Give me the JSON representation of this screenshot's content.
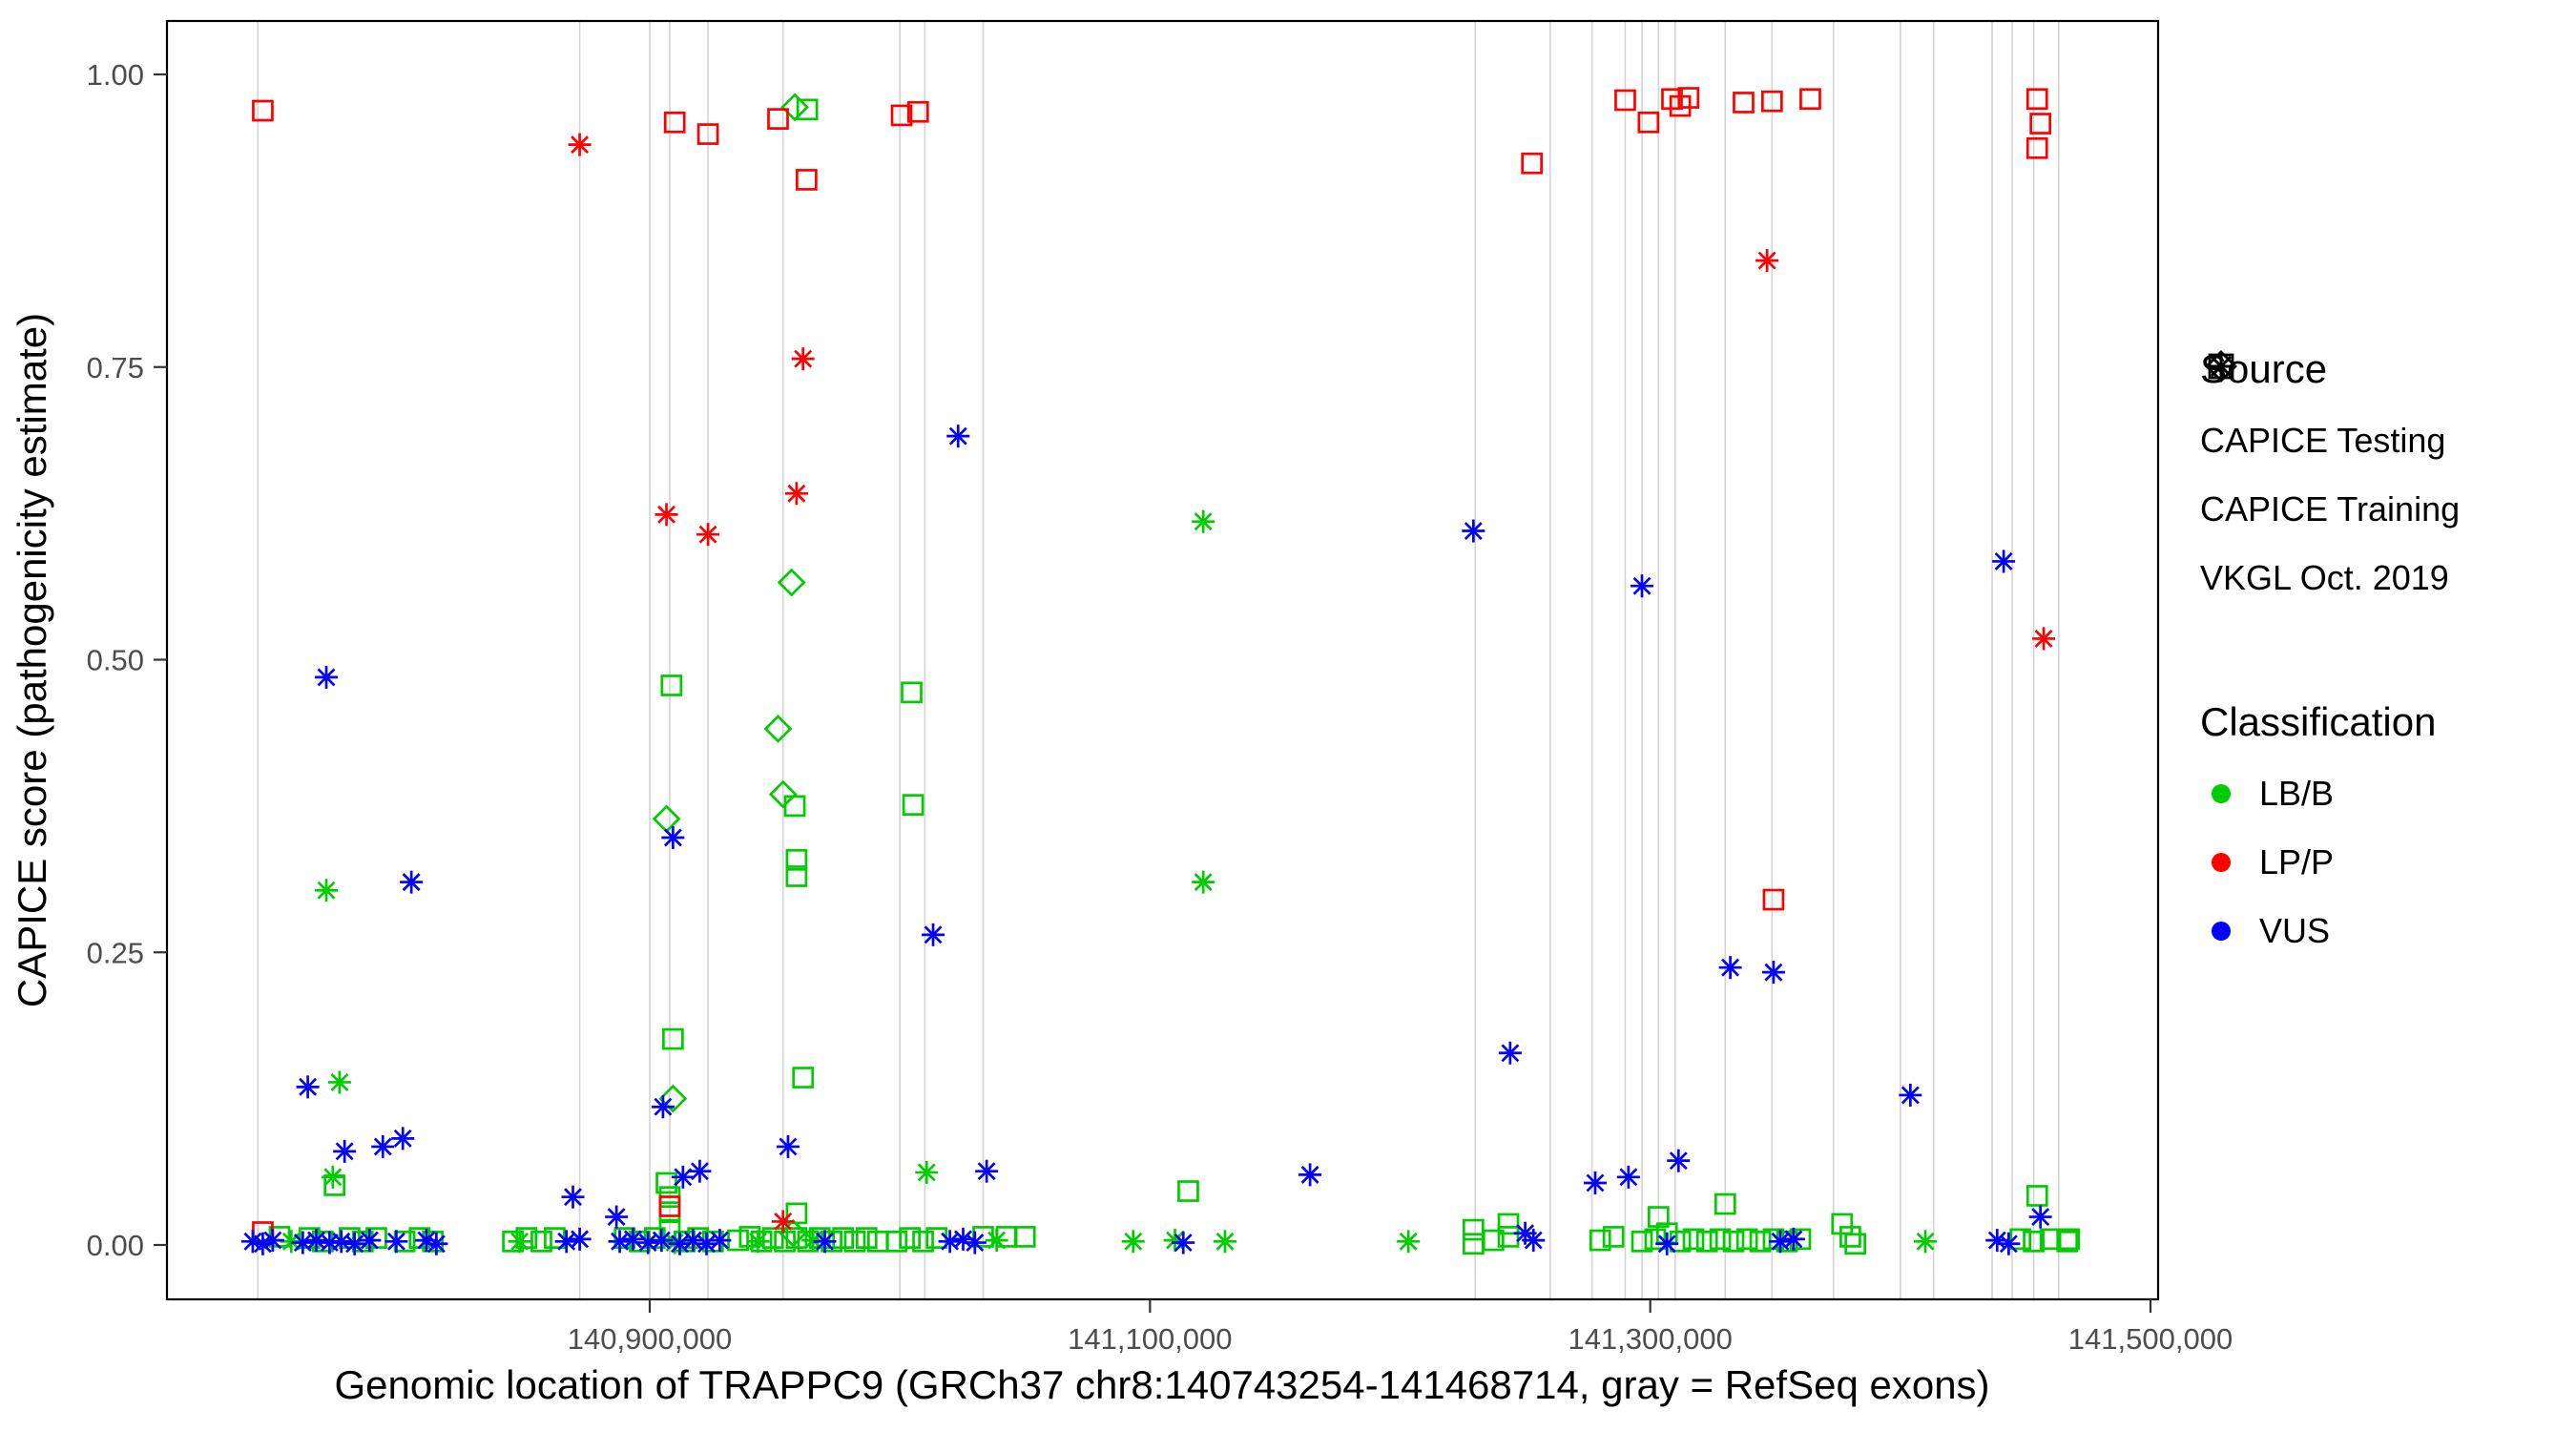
{
  "chart_data": {
    "type": "scatter",
    "title": "",
    "xlabel": "Genomic location of TRAPPC9 (GRCh37 chr8:140743254-141468714, gray = RefSeq exons)",
    "ylabel": "CAPICE score (pathogenicity estimate)",
    "xlim": [
      140707000,
      141503000
    ],
    "ylim": [
      -0.033,
      1.047
    ],
    "grid": false,
    "legend_position": "right",
    "x_ticks": [
      {
        "value": 140900000,
        "label": "140,900,000"
      },
      {
        "value": 141100000,
        "label": "141,100,000"
      },
      {
        "value": 141300000,
        "label": "141,300,000"
      },
      {
        "value": 141500000,
        "label": "141,500,000"
      }
    ],
    "y_ticks": [
      {
        "value": 0,
        "label": "0.00"
      },
      {
        "value": 0.25,
        "label": "0.25"
      },
      {
        "value": 0.5,
        "label": "0.50"
      },
      {
        "value": 0.75,
        "label": "0.75"
      },
      {
        "value": 1,
        "label": "1.00"
      }
    ],
    "colors": {
      "LB/B": "#00CC00",
      "LP/P": "#FF0000",
      "VUS": "#0000FF",
      "exon": "#D3D3D3",
      "panel_border": "#000000",
      "tick_label": "#4d4d4d"
    },
    "exon_lines": [
      140743300,
      140872000,
      140900000,
      140908000,
      140923300,
      140953300,
      141000000,
      141010000,
      141033300,
      141230000,
      141260000,
      141276700,
      141290000,
      141296700,
      141303300,
      141310000,
      141330000,
      141348700,
      141373300,
      141400000,
      141413300,
      141436700,
      141444700,
      141453300,
      141463300
    ],
    "series": [
      {
        "source": "CAPICE Testing",
        "classification": "LB/B",
        "shape": "diamond",
        "points": [
          [
            140958000,
            0.972
          ],
          [
            140956700,
            0.566
          ],
          [
            140951300,
            0.441
          ],
          [
            140906700,
            0.364
          ],
          [
            140953300,
            0.385
          ],
          [
            140909300,
            0.125
          ],
          [
            140957300,
            0.01
          ]
        ]
      },
      {
        "source": "CAPICE Training",
        "classification": "LB/B",
        "shape": "square",
        "points": [
          [
            140963000,
            0.97
          ],
          [
            140908700,
            0.478
          ],
          [
            141004700,
            0.472
          ],
          [
            141005300,
            0.376
          ],
          [
            140958000,
            0.375
          ],
          [
            140958700,
            0.329
          ],
          [
            140958700,
            0.315
          ],
          [
            140909300,
            0.176
          ],
          [
            140961300,
            0.143
          ],
          [
            141115300,
            0.046
          ],
          [
            140906700,
            0.053
          ],
          [
            140908000,
            0.041
          ],
          [
            140908000,
            0.028
          ],
          [
            141303300,
            0.024
          ],
          [
            141330000,
            0.035
          ],
          [
            141454700,
            0.042
          ],
          [
            140958700,
            0.027
          ],
          [
            140774000,
            0.051
          ],
          [
            141243300,
            0.018
          ],
          [
            141376700,
            0.018
          ],
          [
            140752000,
            0.007
          ],
          [
            140764000,
            0.006
          ],
          [
            140769300,
            0.003
          ],
          [
            140780000,
            0.006
          ],
          [
            140785300,
            0.003
          ],
          [
            140790700,
            0.006
          ],
          [
            140802000,
            0.003
          ],
          [
            140808000,
            0.006
          ],
          [
            140813300,
            0.003
          ],
          [
            140845300,
            0.003
          ],
          [
            140850700,
            0.006
          ],
          [
            140856700,
            0.003
          ],
          [
            140862000,
            0.006
          ],
          [
            140890000,
            0.006
          ],
          [
            140896000,
            0.003
          ],
          [
            140902000,
            0.006
          ],
          [
            140908000,
            0.013
          ],
          [
            140914000,
            0.003
          ],
          [
            140919300,
            0.006
          ],
          [
            140925300,
            0.003
          ],
          [
            140935300,
            0.004
          ],
          [
            140940000,
            0.007
          ],
          [
            140944700,
            0.003
          ],
          [
            140949300,
            0.006
          ],
          [
            140954000,
            0.003
          ],
          [
            140958700,
            0.006
          ],
          [
            140963300,
            0.003
          ],
          [
            140968000,
            0.006
          ],
          [
            140972700,
            0.003
          ],
          [
            140977300,
            0.006
          ],
          [
            140982000,
            0.003
          ],
          [
            140986700,
            0.006
          ],
          [
            140991300,
            0.003
          ],
          [
            140998700,
            0.003
          ],
          [
            141004000,
            0.006
          ],
          [
            141009300,
            0.003
          ],
          [
            141014700,
            0.006
          ],
          [
            141033300,
            0.007
          ],
          [
            141042700,
            0.007
          ],
          [
            141050000,
            0.007
          ],
          [
            141229300,
            0.013
          ],
          [
            141229300,
            0.001
          ],
          [
            141237300,
            0.004
          ],
          [
            141243300,
            0.007
          ],
          [
            141280000,
            0.004
          ],
          [
            141285300,
            0.007
          ],
          [
            141296700,
            0.003
          ],
          [
            141302000,
            0.005
          ],
          [
            141306700,
            0.01
          ],
          [
            141312000,
            0.003
          ],
          [
            141317300,
            0.005
          ],
          [
            141322700,
            0.003
          ],
          [
            141328000,
            0.005
          ],
          [
            141333300,
            0.003
          ],
          [
            141338700,
            0.005
          ],
          [
            141344000,
            0.003
          ],
          [
            141349300,
            0.005
          ],
          [
            141354700,
            0.003
          ],
          [
            141360000,
            0.005
          ],
          [
            141380000,
            0.007
          ],
          [
            141382000,
            0.001
          ],
          [
            141448000,
            0.005
          ],
          [
            141453300,
            0.003
          ],
          [
            141460000,
            0.005
          ],
          [
            141466700,
            0.003
          ],
          [
            141467500,
            0.005
          ]
        ]
      },
      {
        "source": "CAPICE Training",
        "classification": "LP/P",
        "shape": "square",
        "points": [
          [
            140745300,
            0.969
          ],
          [
            140910000,
            0.959
          ],
          [
            140923300,
            0.949
          ],
          [
            140951300,
            0.962
          ],
          [
            140962700,
            0.91
          ],
          [
            141000700,
            0.965
          ],
          [
            141007300,
            0.968
          ],
          [
            141252700,
            0.924
          ],
          [
            141290000,
            0.978
          ],
          [
            141299300,
            0.959
          ],
          [
            141308700,
            0.979
          ],
          [
            141312000,
            0.973
          ],
          [
            141315300,
            0.98
          ],
          [
            141337300,
            0.976
          ],
          [
            141348700,
            0.977
          ],
          [
            141364000,
            0.979
          ],
          [
            141454700,
            0.979
          ],
          [
            141456000,
            0.958
          ],
          [
            141454700,
            0.937
          ],
          [
            141349300,
            0.295
          ],
          [
            140745300,
            0.011
          ],
          [
            140908000,
            0.033
          ]
        ]
      },
      {
        "source": "VKGL Oct. 2019",
        "classification": "LB/B",
        "shape": "asterisk",
        "points": [
          [
            141121300,
            0.618
          ],
          [
            141121300,
            0.31
          ],
          [
            140770700,
            0.303
          ],
          [
            140776000,
            0.139
          ],
          [
            140773300,
            0.058
          ],
          [
            141010700,
            0.062
          ],
          [
            140965300,
            0.004
          ],
          [
            140756700,
            0.003
          ],
          [
            140848000,
            0.003
          ],
          [
            140910000,
            0.002
          ],
          [
            140943300,
            0.003
          ],
          [
            141038700,
            0.004
          ],
          [
            141093300,
            0.003
          ],
          [
            141110000,
            0.004
          ],
          [
            141130000,
            0.003
          ],
          [
            141203300,
            0.003
          ],
          [
            141410000,
            0.003
          ]
        ]
      },
      {
        "source": "VKGL Oct. 2019",
        "classification": "LP/P",
        "shape": "asterisk",
        "points": [
          [
            140872000,
            0.94
          ],
          [
            140961300,
            0.757
          ],
          [
            140958700,
            0.642
          ],
          [
            140906700,
            0.624
          ],
          [
            140923300,
            0.607
          ],
          [
            141346700,
            0.841
          ],
          [
            141457300,
            0.518
          ],
          [
            140953300,
            0.02
          ]
        ]
      },
      {
        "source": "VKGL Oct. 2019",
        "classification": "VUS",
        "shape": "asterisk",
        "points": [
          [
            141023300,
            0.691
          ],
          [
            141229300,
            0.61
          ],
          [
            141296700,
            0.563
          ],
          [
            141441300,
            0.584
          ],
          [
            140770700,
            0.485
          ],
          [
            140909300,
            0.348
          ],
          [
            140804700,
            0.31
          ],
          [
            141013300,
            0.265
          ],
          [
            141332000,
            0.237
          ],
          [
            141349300,
            0.233
          ],
          [
            141244000,
            0.164
          ],
          [
            141404000,
            0.128
          ],
          [
            140763300,
            0.135
          ],
          [
            140905300,
            0.118
          ],
          [
            140955300,
            0.084
          ],
          [
            140778000,
            0.08
          ],
          [
            140793300,
            0.084
          ],
          [
            140801300,
            0.091
          ],
          [
            141278000,
            0.053
          ],
          [
            141291300,
            0.058
          ],
          [
            141311300,
            0.072
          ],
          [
            141164000,
            0.06
          ],
          [
            141034700,
            0.063
          ],
          [
            140913300,
            0.058
          ],
          [
            140920000,
            0.063
          ],
          [
            140869300,
            0.041
          ],
          [
            140886700,
            0.024
          ],
          [
            141456000,
            0.024
          ],
          [
            140741300,
            0.003
          ],
          [
            140745300,
            0.001
          ],
          [
            140749300,
            0.004
          ],
          [
            140761300,
            0.002
          ],
          [
            140766700,
            0.004
          ],
          [
            140772000,
            0.002
          ],
          [
            140776700,
            0.003
          ],
          [
            140782000,
            0.001
          ],
          [
            140788000,
            0.004
          ],
          [
            140798700,
            0.003
          ],
          [
            140810700,
            0.004
          ],
          [
            140814700,
            0.001
          ],
          [
            140866700,
            0.003
          ],
          [
            140872000,
            0.005
          ],
          [
            140888000,
            0.003
          ],
          [
            140893300,
            0.005
          ],
          [
            140899300,
            0.002
          ],
          [
            140904700,
            0.004
          ],
          [
            140912000,
            0.001
          ],
          [
            140917300,
            0.004
          ],
          [
            140922700,
            0.001
          ],
          [
            140928000,
            0.004
          ],
          [
            140970000,
            0.003
          ],
          [
            141020000,
            0.003
          ],
          [
            141025300,
            0.005
          ],
          [
            141030000,
            0.002
          ],
          [
            141113300,
            0.002
          ],
          [
            141250000,
            0.01
          ],
          [
            141253300,
            0.004
          ],
          [
            141306700,
            0.001
          ],
          [
            141352000,
            0.003
          ],
          [
            141357300,
            0.005
          ],
          [
            141438700,
            0.004
          ],
          [
            141443300,
            0.001
          ]
        ]
      }
    ]
  },
  "legend": {
    "source_title": "Source",
    "source_items": [
      {
        "label": "CAPICE Testing",
        "shape": "diamond"
      },
      {
        "label": "CAPICE Training",
        "shape": "square"
      },
      {
        "label": "VKGL Oct. 2019",
        "shape": "asterisk"
      }
    ],
    "classification_title": "Classification",
    "classification_items": [
      {
        "label": "LB/B",
        "color_key": "LB/B"
      },
      {
        "label": "LP/P",
        "color_key": "LP/P"
      },
      {
        "label": "VUS",
        "color_key": "VUS"
      }
    ]
  }
}
